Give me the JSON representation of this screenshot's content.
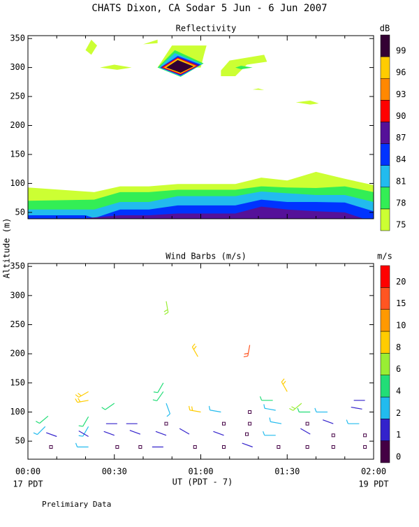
{
  "title": "CHATS Dixon, CA  Sodar   5 Jun -  6 Jun 2007",
  "y_label": "Altitude (m)",
  "x_label": "UT  (PDT - 7)",
  "date_start": "17 PDT",
  "date_end": "19 PDT",
  "footer": "Prelimiary Data",
  "chart_data": [
    {
      "type": "contour",
      "title": "Reflectivity",
      "xlim": [
        0,
        120
      ],
      "xticks": [
        0,
        30,
        60,
        90,
        120
      ],
      "xminorticks": [
        10,
        20,
        40,
        50,
        70,
        80,
        100,
        110
      ],
      "ylim": [
        39,
        355
      ],
      "yticks": [
        50,
        100,
        150,
        200,
        250,
        300,
        350
      ],
      "colorbar": {
        "label": "dB",
        "levels": [
          75,
          78,
          81,
          84,
          87,
          90,
          93,
          96,
          99
        ],
        "colors": [
          "#ccff33",
          "#33ee55",
          "#22bbee",
          "#0033ff",
          "#551199",
          "#ff0000",
          "#ff8800",
          "#ffcc00",
          "#330033"
        ]
      },
      "bands": [
        {
          "level": 75,
          "x": [
            0,
            23,
            32,
            42,
            52,
            72,
            81,
            90,
            100,
            110,
            120
          ],
          "y": [
            93,
            85,
            95,
            95,
            99,
            99,
            110,
            105,
            120,
            108,
            97
          ]
        },
        {
          "level": 78,
          "x": [
            0,
            23,
            32,
            42,
            52,
            72,
            81,
            90,
            100,
            110,
            120
          ],
          "y": [
            70,
            72,
            85,
            85,
            89,
            89,
            95,
            93,
            92,
            95,
            85
          ]
        },
        {
          "level": 81,
          "x": [
            0,
            23,
            32,
            42,
            52,
            72,
            81,
            90,
            100,
            110,
            120
          ],
          "y": [
            55,
            55,
            68,
            68,
            78,
            78,
            86,
            83,
            80,
            80,
            68
          ]
        },
        {
          "level": 84,
          "x": [
            0,
            20,
            23,
            32,
            42,
            52,
            72,
            81,
            90,
            100,
            110,
            120
          ],
          "y": [
            45,
            45,
            40,
            55,
            55,
            62,
            62,
            72,
            68,
            68,
            67,
            52
          ]
        },
        {
          "level": 87,
          "x": [
            20,
            32,
            42,
            52,
            72,
            81,
            90,
            100,
            110,
            116
          ],
          "y": [
            40,
            45,
            45,
            48,
            48,
            60,
            55,
            52,
            50,
            40
          ]
        }
      ],
      "patches": [
        {
          "level": 75,
          "x": [
            20,
            22,
            24,
            22
          ],
          "y": [
            330,
            348,
            338,
            322
          ]
        },
        {
          "level": 75,
          "x": [
            25,
            30,
            36,
            31
          ],
          "y": [
            300,
            305,
            300,
            296
          ]
        },
        {
          "level": 75,
          "x": [
            40,
            45,
            45
          ],
          "y": [
            340,
            348,
            342
          ]
        },
        {
          "level": 75,
          "x": [
            45,
            50,
            62,
            61,
            60,
            50
          ],
          "y": [
            300,
            338,
            338,
            320,
            300,
            300
          ]
        },
        {
          "level": 75,
          "x": [
            67,
            70,
            82,
            83,
            76,
            72,
            67
          ],
          "y": [
            295,
            312,
            322,
            310,
            305,
            285,
            285
          ]
        },
        {
          "level": 78,
          "x": [
            72,
            74,
            78,
            74
          ],
          "y": [
            300,
            303,
            300,
            297
          ]
        },
        {
          "level": 75,
          "x": [
            78,
            80,
            82
          ],
          "y": [
            262,
            264,
            261
          ]
        },
        {
          "level": 75,
          "x": [
            93,
            98,
            101,
            98
          ],
          "y": [
            240,
            243,
            238,
            236
          ]
        },
        {
          "level": 78,
          "x": [
            45,
            51,
            61,
            53
          ],
          "y": [
            300,
            330,
            307,
            284
          ]
        },
        {
          "level": 81,
          "x": [
            45.5,
            51,
            60.5,
            53
          ],
          "y": [
            300,
            325,
            306,
            285
          ]
        },
        {
          "level": 84,
          "x": [
            46,
            52,
            60,
            53
          ],
          "y": [
            300,
            320,
            305,
            286
          ]
        },
        {
          "level": 87,
          "x": [
            46,
            52,
            59.5,
            53
          ],
          "y": [
            300,
            318,
            304,
            287
          ]
        },
        {
          "level": 90,
          "x": [
            46.5,
            52,
            59,
            53
          ],
          "y": [
            300,
            317,
            303,
            288
          ]
        },
        {
          "level": 93,
          "x": [
            47,
            52,
            58.5,
            53
          ],
          "y": [
            300,
            316,
            303,
            289
          ]
        },
        {
          "level": 96,
          "x": [
            47.5,
            52,
            58,
            53
          ],
          "y": [
            300,
            315,
            302,
            290
          ]
        },
        {
          "level": 99,
          "x": [
            48,
            52,
            57.5,
            53
          ],
          "y": [
            300,
            313,
            302,
            291
          ]
        }
      ]
    },
    {
      "type": "barbs",
      "title": "Wind Barbs (m/s)",
      "xlim": [
        0,
        120
      ],
      "xticks": [
        {
          "value": 0,
          "label": "00:00"
        },
        {
          "value": 30,
          "label": "00:30"
        },
        {
          "value": 60,
          "label": "01:00"
        },
        {
          "value": 90,
          "label": "01:30"
        },
        {
          "value": 120,
          "label": "02:00"
        }
      ],
      "xminorticks": [
        10,
        20,
        40,
        50,
        70,
        80,
        100,
        110
      ],
      "ylim": [
        19,
        355
      ],
      "yticks": [
        50,
        100,
        150,
        200,
        250,
        300,
        350
      ],
      "colorbar": {
        "label": "m/s",
        "levels": [
          0,
          1,
          2,
          4,
          6,
          8,
          10,
          15,
          20
        ],
        "colors": [
          "#440044",
          "#3322cc",
          "#22bbee",
          "#22dd77",
          "#99ee33",
          "#ffcc00",
          "#ff9900",
          "#ff5522",
          "#ff0000"
        ]
      },
      "x": [
        7,
        6,
        10,
        8,
        21,
        21,
        21,
        21,
        21,
        21,
        30,
        31,
        30,
        31,
        38,
        39,
        39,
        48,
        47,
        47,
        48,
        48,
        48,
        47,
        56,
        58,
        59,
        60,
        67,
        68,
        68,
        68,
        77,
        77,
        77,
        76,
        78,
        85,
        86,
        88,
        86,
        87,
        90,
        95,
        98,
        97,
        98,
        97,
        104,
        106,
        106,
        106,
        117,
        116,
        115,
        117,
        117
      ],
      "y": [
        93,
        75,
        58,
        40,
        135,
        120,
        92,
        75,
        58,
        40,
        115,
        80,
        60,
        40,
        80,
        62,
        40,
        290,
        150,
        135,
        115,
        80,
        60,
        40,
        62,
        40,
        195,
        100,
        100,
        80,
        60,
        40,
        215,
        100,
        80,
        62,
        40,
        120,
        103,
        80,
        60,
        40,
        135,
        115,
        100,
        80,
        62,
        40,
        100,
        80,
        60,
        40,
        120,
        105,
        80,
        60,
        40
      ],
      "speed": [
        4,
        3,
        1,
        0,
        8,
        8,
        5,
        3,
        1,
        2,
        4,
        1,
        1,
        0,
        1,
        1,
        0,
        6,
        4,
        4,
        2,
        0,
        1,
        1,
        1,
        0,
        8,
        8,
        2,
        0,
        1,
        0,
        15,
        0,
        0,
        0,
        1,
        4,
        2,
        2,
        2,
        0,
        8,
        6,
        4,
        0,
        1,
        0,
        2,
        1,
        0,
        0,
        1,
        1,
        2,
        0,
        0
      ],
      "direction": [
        230,
        225,
        290,
        null,
        240,
        260,
        210,
        210,
        300,
        270,
        235,
        270,
        290,
        null,
        270,
        290,
        null,
        170,
        210,
        215,
        160,
        null,
        290,
        270,
        300,
        null,
        330,
        280,
        280,
        null,
        290,
        null,
        190,
        null,
        null,
        null,
        290,
        270,
        280,
        280,
        270,
        null,
        330,
        230,
        270,
        null,
        300,
        null,
        270,
        290,
        null,
        null,
        270,
        280,
        270,
        null,
        null
      ]
    }
  ]
}
